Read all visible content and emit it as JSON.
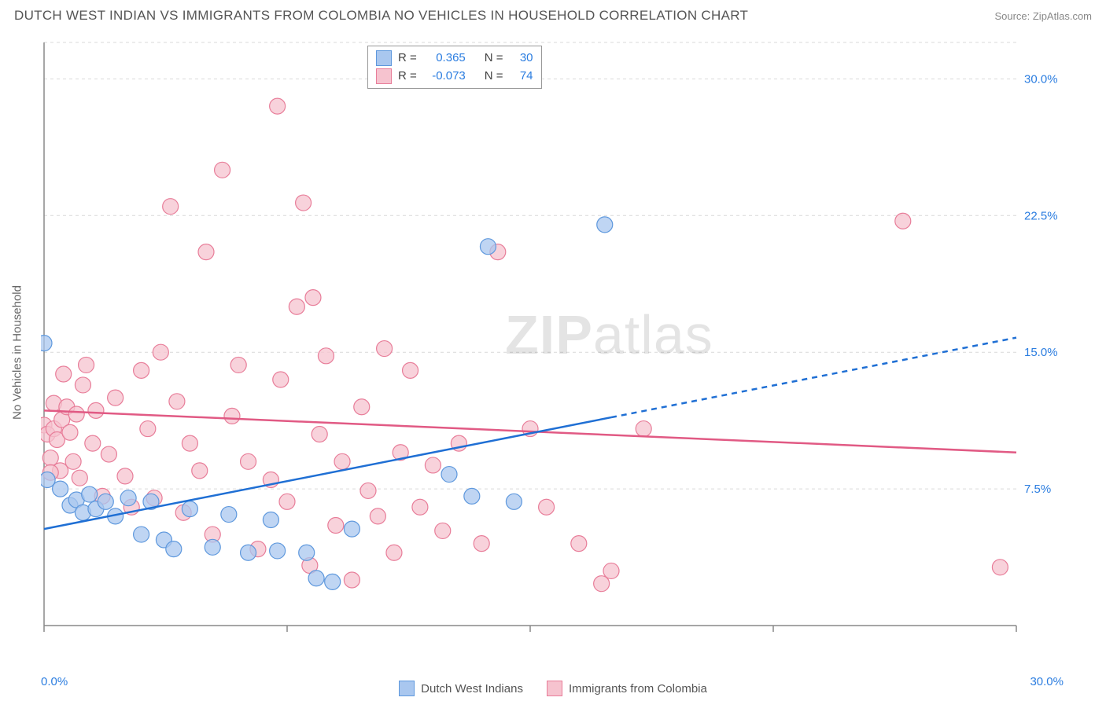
{
  "header": {
    "title": "DUTCH WEST INDIAN VS IMMIGRANTS FROM COLOMBIA NO VEHICLES IN HOUSEHOLD CORRELATION CHART",
    "source": "Source: ZipAtlas.com"
  },
  "ylabel": "No Vehicles in Household",
  "watermark": {
    "part1": "ZIP",
    "part2": "atlas"
  },
  "chart": {
    "type": "scatter-with-trend",
    "plot_bg": "#ffffff",
    "grid_color": "#d9d9d9",
    "grid_dash": "4,4",
    "axis_color": "#888888",
    "xlim": [
      0,
      30
    ],
    "ylim": [
      0,
      32
    ],
    "ytick_values": [
      7.5,
      15.0,
      22.5,
      30.0
    ],
    "ytick_labels": [
      "7.5%",
      "15.0%",
      "22.5%",
      "30.0%"
    ],
    "xaxis_labels": {
      "min": "0.0%",
      "max": "30.0%"
    },
    "xtick_positions": [
      0,
      7.5,
      15,
      22.5,
      30
    ],
    "tick_label_color": "#2b7de0",
    "tick_fontsize": 15
  },
  "stats": {
    "series1": {
      "R_label": "R =",
      "R": "0.365",
      "N_label": "N =",
      "N": "30"
    },
    "series2": {
      "R_label": "R =",
      "R": "-0.073",
      "N_label": "N =",
      "N": "74"
    }
  },
  "series1": {
    "name": "Dutch West Indians",
    "fill": "#a9c7ef",
    "stroke": "#5e98dd",
    "opacity": 0.75,
    "marker": "circle",
    "marker_r": 10,
    "trend": {
      "color": "#1f6fd4",
      "width": 2.5,
      "y_at_x0": 5.3,
      "y_at_x30": 15.8,
      "solid_until_x": 17.5
    },
    "points": [
      [
        0.0,
        15.5
      ],
      [
        0.1,
        8.0
      ],
      [
        0.5,
        7.5
      ],
      [
        0.8,
        6.6
      ],
      [
        1.0,
        6.9
      ],
      [
        1.2,
        6.2
      ],
      [
        1.4,
        7.2
      ],
      [
        1.6,
        6.4
      ],
      [
        1.9,
        6.8
      ],
      [
        2.2,
        6.0
      ],
      [
        2.6,
        7.0
      ],
      [
        3.0,
        5.0
      ],
      [
        3.3,
        6.8
      ],
      [
        3.7,
        4.7
      ],
      [
        4.0,
        4.2
      ],
      [
        4.5,
        6.4
      ],
      [
        5.2,
        4.3
      ],
      [
        5.7,
        6.1
      ],
      [
        6.3,
        4.0
      ],
      [
        7.0,
        5.8
      ],
      [
        7.2,
        4.1
      ],
      [
        8.1,
        4.0
      ],
      [
        8.4,
        2.6
      ],
      [
        8.9,
        2.4
      ],
      [
        9.5,
        5.3
      ],
      [
        12.5,
        8.3
      ],
      [
        13.2,
        7.1
      ],
      [
        13.7,
        20.8
      ],
      [
        14.5,
        6.8
      ],
      [
        17.3,
        22.0
      ]
    ]
  },
  "series2": {
    "name": "Immigrants from Colombia",
    "fill": "#f6c3cf",
    "stroke": "#e87d99",
    "opacity": 0.75,
    "marker": "circle",
    "marker_r": 10,
    "trend": {
      "color": "#e15a84",
      "width": 2.5,
      "y_at_x0": 11.8,
      "y_at_x30": 9.5
    },
    "points": [
      [
        0.0,
        11.0
      ],
      [
        0.1,
        10.5
      ],
      [
        0.2,
        9.2
      ],
      [
        0.3,
        10.8
      ],
      [
        0.3,
        12.2
      ],
      [
        0.4,
        10.2
      ],
      [
        0.5,
        8.5
      ],
      [
        0.55,
        11.3
      ],
      [
        0.6,
        13.8
      ],
      [
        0.7,
        12.0
      ],
      [
        0.8,
        10.6
      ],
      [
        0.9,
        9.0
      ],
      [
        1.0,
        11.6
      ],
      [
        1.1,
        8.1
      ],
      [
        1.2,
        13.2
      ],
      [
        1.3,
        14.3
      ],
      [
        1.5,
        10.0
      ],
      [
        1.6,
        11.8
      ],
      [
        1.8,
        7.1
      ],
      [
        2.0,
        9.4
      ],
      [
        2.2,
        12.5
      ],
      [
        2.5,
        8.2
      ],
      [
        2.7,
        6.5
      ],
      [
        3.0,
        14.0
      ],
      [
        3.2,
        10.8
      ],
      [
        3.4,
        7.0
      ],
      [
        3.6,
        15.0
      ],
      [
        3.9,
        23.0
      ],
      [
        4.1,
        12.3
      ],
      [
        4.3,
        6.2
      ],
      [
        4.5,
        10.0
      ],
      [
        4.8,
        8.5
      ],
      [
        5.0,
        20.5
      ],
      [
        5.2,
        5.0
      ],
      [
        5.5,
        25.0
      ],
      [
        5.8,
        11.5
      ],
      [
        6.0,
        14.3
      ],
      [
        6.3,
        9.0
      ],
      [
        6.6,
        4.2
      ],
      [
        7.0,
        8.0
      ],
      [
        7.2,
        28.5
      ],
      [
        7.3,
        13.5
      ],
      [
        7.5,
        6.8
      ],
      [
        7.8,
        17.5
      ],
      [
        8.0,
        23.2
      ],
      [
        8.2,
        3.3
      ],
      [
        8.3,
        18.0
      ],
      [
        8.5,
        10.5
      ],
      [
        8.7,
        14.8
      ],
      [
        9.0,
        5.5
      ],
      [
        9.2,
        9.0
      ],
      [
        9.5,
        2.5
      ],
      [
        9.8,
        12.0
      ],
      [
        10.0,
        7.4
      ],
      [
        10.3,
        6.0
      ],
      [
        10.5,
        15.2
      ],
      [
        10.8,
        4.0
      ],
      [
        11.0,
        9.5
      ],
      [
        11.3,
        14.0
      ],
      [
        11.6,
        6.5
      ],
      [
        12.0,
        8.8
      ],
      [
        12.3,
        5.2
      ],
      [
        12.8,
        10.0
      ],
      [
        13.5,
        4.5
      ],
      [
        14.0,
        20.5
      ],
      [
        15.0,
        10.8
      ],
      [
        15.5,
        6.5
      ],
      [
        16.5,
        4.5
      ],
      [
        17.2,
        2.3
      ],
      [
        17.5,
        3.0
      ],
      [
        18.5,
        10.8
      ],
      [
        26.5,
        22.2
      ],
      [
        29.5,
        3.2
      ],
      [
        0.2,
        8.4
      ]
    ]
  },
  "legend": {
    "item1": "Dutch West Indians",
    "item2": "Immigrants from Colombia"
  }
}
